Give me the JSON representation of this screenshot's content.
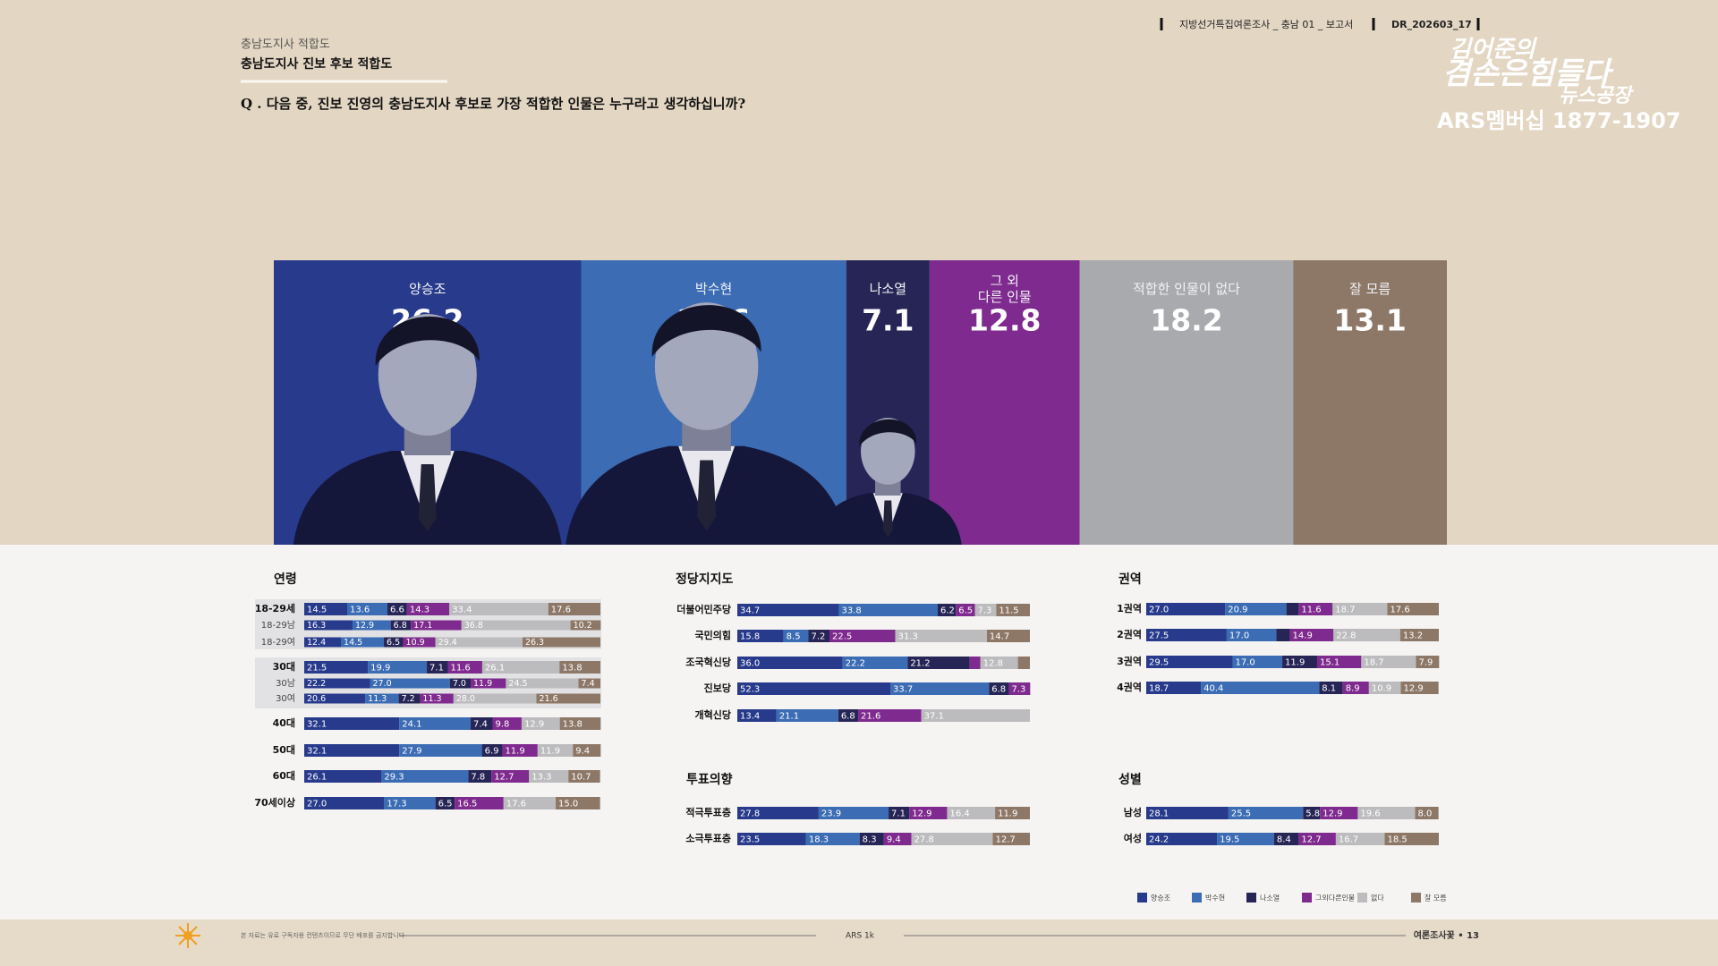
{
  "header": {
    "section": "충남도지사 적합도",
    "title": "충남도지사 진보 후보 적합도",
    "question": "Q . 다음 중, 진보 진영의 충남도지사 후보로 가장 적합한 인물은 누구라고 생각하십니까?",
    "report": "지방선거특집여론조사 _ 충남 01 _ 보고서",
    "code": "DR_202603_17",
    "logo": [
      "김어준의",
      "겸손은힘들다",
      "뉴스공장"
    ],
    "membership": "ARS멤버십 1877-1907"
  },
  "footer": {
    "notice": "본 자료는 유료 구독자용 컨텐츠이므로 무단 배포를 금지합니다",
    "method": "ARS 1k",
    "page": "여론조사꽃 • 13"
  },
  "legend": {
    "names": [
      "양승조",
      "박수현",
      "나소열",
      "그외다른인물",
      "없다",
      "잘 모름"
    ],
    "colors": [
      "#273a8c",
      "#3b6cb4",
      "#262556",
      "#7f2a8e",
      "#bcbcbe",
      "#8d7868"
    ]
  },
  "chart_data": [
    {
      "type": "stacked-bar",
      "xlim": [
        0,
        100
      ],
      "series": [
        {
          "name": "양승조",
          "color": "#273a8c",
          "values": [
            26.2
          ]
        },
        {
          "name": "박수현",
          "color": "#3b6cb4",
          "values": [
            22.6
          ]
        },
        {
          "name": "나소열",
          "color": "#262556",
          "values": [
            7.1
          ]
        },
        {
          "name": "그 외\n다른 인물",
          "color": "#7f2a8e",
          "values": [
            12.8
          ]
        },
        {
          "name": "적합한 인물이 없다",
          "color": "#a8aaae",
          "values": [
            18.2
          ]
        },
        {
          "name": "잘 모름",
          "color": "#8d7868",
          "values": [
            13.1
          ]
        }
      ]
    },
    {
      "type": "stacked-bar",
      "title": "연령",
      "xlim": [
        0,
        100
      ],
      "categories": [
        "18-29세",
        "18-29남",
        "18-29여",
        "30대",
        "30남",
        "30여",
        "40대",
        "50대",
        "60대",
        "70세이상"
      ],
      "series": [
        {
          "values": [
            14.5,
            16.3,
            12.4,
            21.5,
            22.2,
            20.6,
            32.1,
            32.1,
            26.1,
            27.0
          ],
          "value_labels": [
            "14.5",
            "16.3",
            "12.4",
            "21.5",
            "22.2",
            "20.6",
            "32.1",
            "32.1",
            "26.1",
            "27.0"
          ]
        },
        {
          "values": [
            13.6,
            12.9,
            14.5,
            19.9,
            27.0,
            11.3,
            24.1,
            27.9,
            29.3,
            17.3
          ],
          "value_labels": [
            "13.6",
            "12.9",
            "14.5",
            "19.9",
            "27.0",
            "11.3",
            "24.1",
            "27.9",
            "29.3",
            "17.3"
          ]
        },
        {
          "values": [
            6.6,
            6.8,
            6.5,
            7.1,
            7.0,
            7.2,
            7.4,
            6.9,
            7.8,
            6.5
          ],
          "value_labels": [
            "6.6",
            "6.8",
            "6.5",
            "7.1",
            "7.0",
            "7.2",
            "7.4",
            "6.9",
            "7.8",
            "6.5"
          ]
        },
        {
          "values": [
            14.3,
            17.1,
            10.9,
            11.6,
            11.9,
            11.3,
            9.8,
            11.9,
            12.7,
            16.5
          ],
          "value_labels": [
            "14.3",
            "17.1",
            "10.9",
            "11.6",
            "11.9",
            "11.3",
            "9.8",
            "11.9",
            "12.7",
            "16.5"
          ]
        },
        {
          "values": [
            33.4,
            36.8,
            29.4,
            26.1,
            24.5,
            28.0,
            12.9,
            11.9,
            13.3,
            17.6
          ],
          "value_labels": [
            "33.4",
            "36.8",
            "29.4",
            "26.1",
            "24.5",
            "28.0",
            "12.9",
            "11.9",
            "13.3",
            "17.6"
          ]
        },
        {
          "values": [
            17.6,
            10.2,
            26.3,
            13.8,
            7.4,
            21.6,
            13.8,
            9.4,
            10.7,
            15.0
          ],
          "value_labels": [
            "17.6",
            "10.2",
            "26.3",
            "13.8",
            "7.4",
            "21.6",
            "13.8",
            "9.4",
            "10.7",
            "15.0"
          ]
        }
      ]
    },
    {
      "type": "stacked-bar",
      "title": "정당지지도",
      "xlim": [
        0,
        100
      ],
      "categories": [
        "더불어민주당",
        "국민의힘",
        "조국혁신당",
        "진보당",
        "개혁신당"
      ],
      "series": [
        {
          "values": [
            34.7,
            15.8,
            36.0,
            52.3,
            13.4
          ],
          "value_labels": [
            "34.7",
            "15.8",
            "36.0",
            "52.3",
            "13.4"
          ]
        },
        {
          "values": [
            33.8,
            8.5,
            22.2,
            33.7,
            21.1
          ],
          "value_labels": [
            "33.8",
            "8.5",
            "22.2",
            "33.7",
            "21.1"
          ]
        },
        {
          "values": [
            6.2,
            7.2,
            21.2,
            6.8,
            6.8
          ],
          "value_labels": [
            "6.2",
            "7.2",
            "21.2",
            "6.8",
            "6.8"
          ]
        },
        {
          "values": [
            6.5,
            22.5,
            3.7,
            7.3,
            21.6
          ],
          "value_labels": [
            "6.5",
            "22.5",
            null,
            "7.3",
            "21.6"
          ]
        },
        {
          "values": [
            7.3,
            31.3,
            12.8,
            0,
            37.1
          ],
          "value_labels": [
            "7.3",
            "31.3",
            "12.8",
            null,
            "37.1"
          ]
        },
        {
          "values": [
            11.5,
            14.7,
            4.1,
            0,
            0
          ],
          "value_labels": [
            "11.5",
            "14.7",
            null,
            null,
            null
          ]
        }
      ]
    },
    {
      "type": "stacked-bar",
      "title": "투표의향",
      "xlim": [
        0,
        100
      ],
      "categories": [
        "적극투표층",
        "소극투표층"
      ],
      "series": [
        {
          "values": [
            27.8,
            23.5
          ],
          "value_labels": [
            "27.8",
            "23.5"
          ]
        },
        {
          "values": [
            23.9,
            18.3
          ],
          "value_labels": [
            "23.9",
            "18.3"
          ]
        },
        {
          "values": [
            7.1,
            8.3
          ],
          "value_labels": [
            "7.1",
            "8.3"
          ]
        },
        {
          "values": [
            12.9,
            9.4
          ],
          "value_labels": [
            "12.9",
            "9.4"
          ]
        },
        {
          "values": [
            16.4,
            27.8
          ],
          "value_labels": [
            "16.4",
            "27.8"
          ]
        },
        {
          "values": [
            11.9,
            12.7
          ],
          "value_labels": [
            "11.9",
            "12.7"
          ]
        }
      ]
    },
    {
      "type": "stacked-bar",
      "title": "권역",
      "xlim": [
        0,
        100
      ],
      "categories": [
        "1권역",
        "2권역",
        "3권역",
        "4권역"
      ],
      "series": [
        {
          "values": [
            27.0,
            27.5,
            29.5,
            18.7
          ],
          "value_labels": [
            "27.0",
            "27.5",
            "29.5",
            "18.7"
          ]
        },
        {
          "values": [
            20.9,
            17.0,
            17.0,
            40.4
          ],
          "value_labels": [
            "20.9",
            "17.0",
            "17.0",
            "40.4"
          ]
        },
        {
          "values": [
            4.2,
            4.6,
            11.9,
            8.1
          ],
          "value_labels": [
            null,
            null,
            "11.9",
            "8.1"
          ]
        },
        {
          "values": [
            11.6,
            14.9,
            15.1,
            8.9
          ],
          "value_labels": [
            "11.6",
            "14.9",
            "15.1",
            "8.9"
          ]
        },
        {
          "values": [
            18.7,
            22.8,
            18.7,
            10.9
          ],
          "value_labels": [
            "18.7",
            "22.8",
            "18.7",
            "10.9"
          ]
        },
        {
          "values": [
            17.6,
            13.2,
            7.9,
            12.9
          ],
          "value_labels": [
            "17.6",
            "13.2",
            "7.9",
            "12.9"
          ]
        }
      ]
    },
    {
      "type": "stacked-bar",
      "title": "성별",
      "xlim": [
        0,
        100
      ],
      "categories": [
        "남성",
        "여성"
      ],
      "series": [
        {
          "values": [
            28.1,
            24.2
          ],
          "value_labels": [
            "28.1",
            "24.2"
          ]
        },
        {
          "values": [
            25.5,
            19.5
          ],
          "value_labels": [
            "25.5",
            "19.5"
          ]
        },
        {
          "values": [
            5.8,
            8.4
          ],
          "value_labels": [
            "5.8",
            "8.4"
          ]
        },
        {
          "values": [
            12.9,
            12.7
          ],
          "value_labels": [
            "12.9",
            "12.7"
          ]
        },
        {
          "values": [
            19.6,
            16.7
          ],
          "value_labels": [
            "19.6",
            "16.7"
          ]
        },
        {
          "values": [
            8.0,
            18.5
          ],
          "value_labels": [
            "8.0",
            "18.5"
          ]
        }
      ]
    }
  ]
}
